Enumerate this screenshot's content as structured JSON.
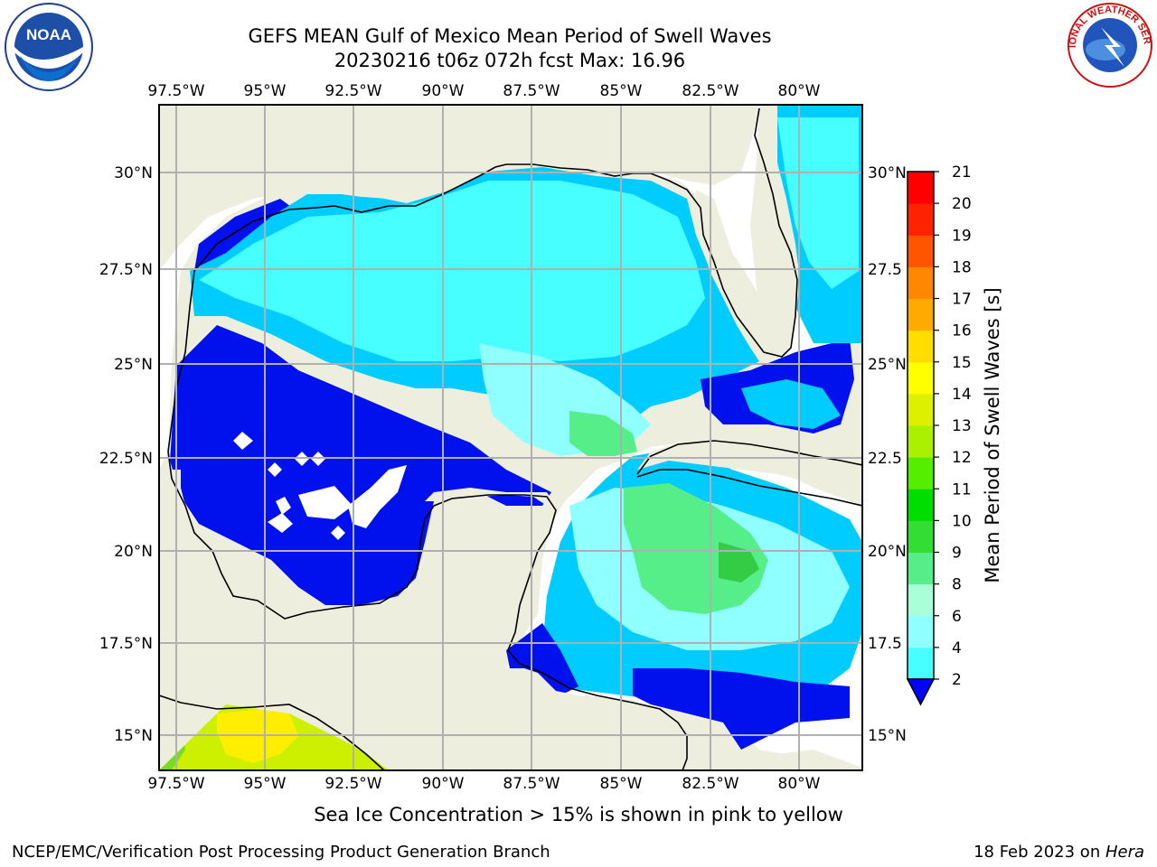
{
  "title": {
    "line1": "GEFS MEAN Gulf of Mexico Mean Period of Swell Waves",
    "line2": "20230216 t06z 072h fcst   Max: 16.96"
  },
  "map": {
    "lon_labels": [
      "97.5°W",
      "95°W",
      "92.5°W",
      "90°W",
      "87.5°W",
      "85°W",
      "82.5°W",
      "80°W"
    ],
    "lat_labels": [
      "30°N",
      "27.5°N",
      "25°N",
      "22.5°N",
      "20°N",
      "17.5°N",
      "15°N"
    ],
    "lat_labels_right": [
      "30°N",
      "27.5",
      "25°N",
      "22.5",
      "20°N",
      "17.5",
      "15°N"
    ],
    "colors": {
      "land": "#eeeedf",
      "ocean_no_data": "#ffffff",
      "grid": "#b0b0b0",
      "coast": "#000000"
    }
  },
  "colorbar": {
    "label": "Mean Period of Swell Waves [s]",
    "ticks": [
      "2",
      "4",
      "6",
      "8",
      "9",
      "10",
      "11",
      "12",
      "13",
      "14",
      "15",
      "16",
      "17",
      "18",
      "19",
      "20",
      "21"
    ],
    "colors": [
      "#0000ff",
      "#0077ff",
      "#00ddff",
      "#47ffff",
      "#8fffff",
      "#a9ffd8",
      "#55ee88",
      "#33dd33",
      "#00dd00",
      "#55ee00",
      "#aaf000",
      "#ddf000",
      "#ffff00",
      "#ffdd00",
      "#ffaa00",
      "#ff8800",
      "#ff5500",
      "#ff2200",
      "#ff0000"
    ],
    "extend": "min"
  },
  "ice_note": "Sea Ice Concentration > 15% is shown in pink to yellow",
  "footer": {
    "left": "NCEP/EMC/Verification Post Processing Product Generation Branch",
    "right_prefix": "18 Feb 2023 on ",
    "right_host": "Hera"
  },
  "logos": {
    "left": "NOAA",
    "right": "NATIONAL WEATHER SERVICE"
  }
}
